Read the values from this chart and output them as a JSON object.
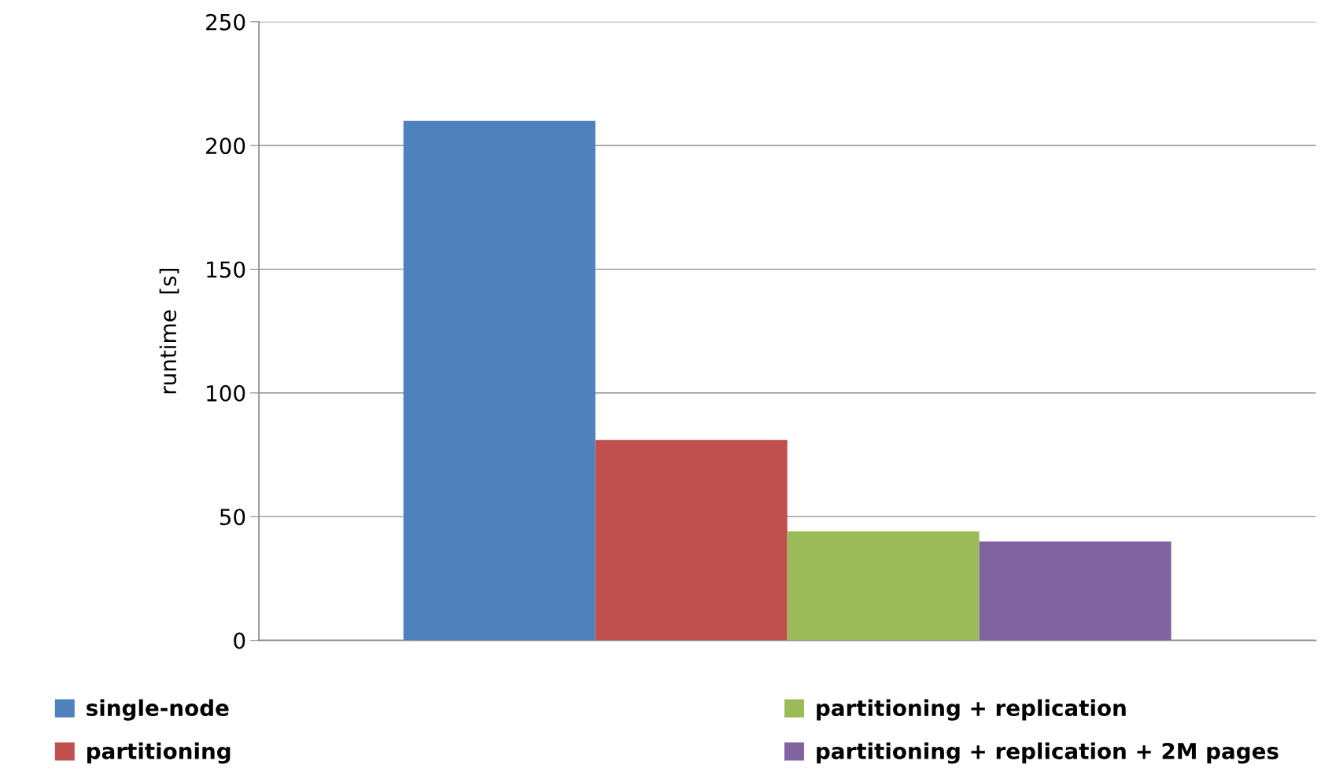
{
  "chart_data": {
    "type": "bar",
    "ylabel": "runtime  [s]",
    "categories": [
      null
    ],
    "series": [
      {
        "name": "single-node",
        "color": "#4f81bd",
        "values": [
          210
        ]
      },
      {
        "name": "partitioning",
        "color": "#c0504d",
        "values": [
          81
        ]
      },
      {
        "name": "partitioning + replication",
        "color": "#9bbb59",
        "values": [
          44
        ]
      },
      {
        "name": "partitioning + replication + 2M pages",
        "color": "#8064a2",
        "values": [
          40
        ]
      }
    ],
    "ylim": [
      0,
      250
    ],
    "yticks": [
      0,
      50,
      100,
      150,
      200,
      250
    ],
    "grid": "y",
    "legend": "bottom",
    "tick_labels": "y"
  }
}
